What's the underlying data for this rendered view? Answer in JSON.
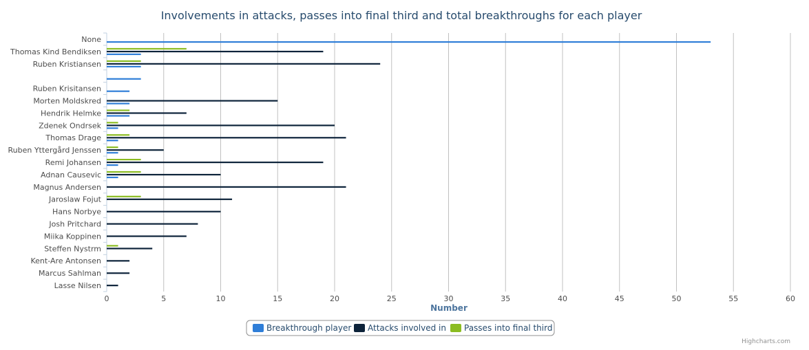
{
  "chart_data": {
    "type": "bar",
    "orientation": "horizontal",
    "title": "Involvements in attacks, passes into final third and total breakthroughs for each player",
    "xlabel": "Number",
    "ylabel": "",
    "xlim": [
      0,
      60
    ],
    "ticks": [
      0,
      5,
      10,
      15,
      20,
      25,
      30,
      35,
      40,
      45,
      50,
      55,
      60
    ],
    "grid": true,
    "legend_position": "bottom-center",
    "credits": "Highcharts.com",
    "categories": [
      "None",
      "Thomas Kind Bendiksen",
      "Ruben Kristiansen",
      "",
      "Ruben Krisitansen",
      "Morten Moldskred",
      "Hendrik Helmke",
      "Zdenek Ondrsek",
      "Thomas Drage",
      "Ruben Yttergård Jenssen",
      "Remi Johansen",
      "Adnan Causevic",
      "Magnus Andersen",
      "Jaroslaw Fojut",
      "Hans Norbye",
      "Josh Pritchard",
      "Miika Koppinen",
      "Steffen Nystrm",
      "Kent-Are Antonsen",
      "Marcus Sahlman",
      "Lasse Nilsen"
    ],
    "series": [
      {
        "name": "Breakthrough player",
        "color": "#2f7ed8",
        "values": [
          53,
          3,
          3,
          3,
          2,
          2,
          2,
          1,
          1,
          1,
          1,
          1,
          0,
          0,
          0,
          0,
          0,
          0,
          0,
          0,
          0
        ]
      },
      {
        "name": "Attacks involved in",
        "color": "#0d233a",
        "values": [
          0,
          19,
          24,
          0,
          0,
          15,
          7,
          20,
          21,
          5,
          19,
          10,
          21,
          11,
          10,
          8,
          7,
          4,
          2,
          2,
          1
        ]
      },
      {
        "name": "Passes into final third",
        "color": "#8bbc21",
        "values": [
          0,
          7,
          3,
          0,
          0,
          0,
          2,
          1,
          2,
          1,
          3,
          3,
          0,
          3,
          0,
          0,
          0,
          1,
          0,
          0,
          0
        ]
      }
    ]
  }
}
